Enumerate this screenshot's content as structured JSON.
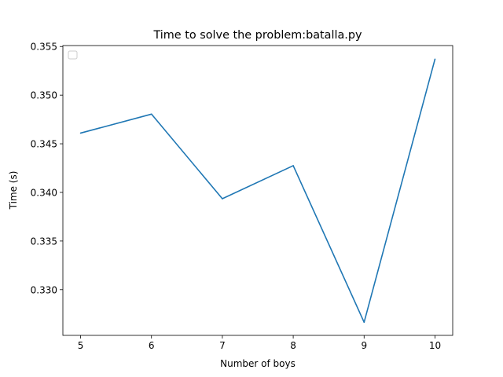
{
  "chart_data": {
    "type": "line",
    "title": "Time to solve the problem:batalla.py",
    "xlabel": "Number of boys",
    "ylabel": "Time (s)",
    "x": [
      5,
      6,
      7,
      8,
      9,
      10
    ],
    "series": [
      {
        "values": [
          0.3461,
          0.34805,
          0.33935,
          0.34275,
          0.32665,
          0.3537
        ]
      }
    ],
    "xticks": [
      5,
      6,
      7,
      8,
      9,
      10
    ],
    "xtick_labels": [
      "5",
      "6",
      "7",
      "8",
      "9",
      "10"
    ],
    "yticks": [
      0.33,
      0.335,
      0.34,
      0.345,
      0.35,
      0.355
    ],
    "ytick_labels": [
      "0.330",
      "0.335",
      "0.340",
      "0.345",
      "0.350",
      "0.355"
    ],
    "xlim": [
      4.75,
      10.25
    ],
    "ylim": [
      0.3253,
      0.3551
    ],
    "grid": false,
    "legend": {
      "placement": "top-left",
      "entries": []
    },
    "colors": {
      "line": "#1f77b4",
      "axes": "#000000",
      "legend_border": "#cccccc"
    }
  }
}
